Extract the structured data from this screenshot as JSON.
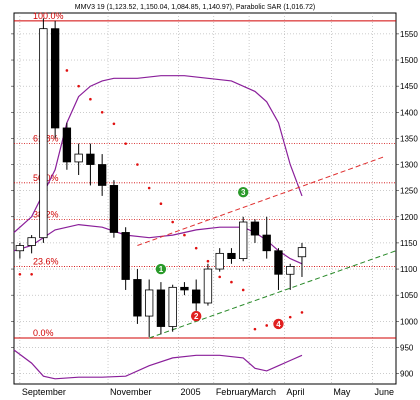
{
  "chart_data": {
    "type": "candlestick",
    "title": "MMV3 19 (1,123.52, 1,150.04, 1,084.85, 1,140.97), Parabolic SAR (1,016.72)",
    "ylim": [
      880,
      1590
    ],
    "y_ticks": [
      900,
      950,
      1000,
      1050,
      1100,
      1150,
      1200,
      1250,
      1300,
      1350,
      1400,
      1450,
      1500,
      1550
    ],
    "x_labels": [
      {
        "label": "September",
        "bar": 0
      },
      {
        "label": "November",
        "bar": 7.5
      },
      {
        "label": "2005",
        "bar": 13.5
      },
      {
        "label": "February",
        "bar": 16.5
      },
      {
        "label": "March",
        "bar": 19.5
      },
      {
        "label": "April",
        "bar": 22.5
      },
      {
        "label": "May",
        "bar": 26.5
      },
      {
        "label": "June",
        "bar": 30
      }
    ],
    "x_range": [
      -0.5,
      32
    ],
    "candles": [
      {
        "o": 1135,
        "h": 1150,
        "l": 1120,
        "c": 1145
      },
      {
        "o": 1145,
        "h": 1165,
        "l": 1130,
        "c": 1160
      },
      {
        "o": 1160,
        "h": 1580,
        "l": 1150,
        "c": 1560
      },
      {
        "o": 1560,
        "h": 1575,
        "l": 1350,
        "c": 1370
      },
      {
        "o": 1370,
        "h": 1380,
        "l": 1290,
        "c": 1305
      },
      {
        "o": 1305,
        "h": 1340,
        "l": 1280,
        "c": 1320
      },
      {
        "o": 1320,
        "h": 1340,
        "l": 1260,
        "c": 1300
      },
      {
        "o": 1300,
        "h": 1320,
        "l": 1240,
        "c": 1260
      },
      {
        "o": 1260,
        "h": 1270,
        "l": 1160,
        "c": 1170
      },
      {
        "o": 1170,
        "h": 1180,
        "l": 1060,
        "c": 1080
      },
      {
        "o": 1080,
        "h": 1100,
        "l": 995,
        "c": 1010
      },
      {
        "o": 1010,
        "h": 1080,
        "l": 970,
        "c": 1060
      },
      {
        "o": 1060,
        "h": 1075,
        "l": 975,
        "c": 990
      },
      {
        "o": 990,
        "h": 1070,
        "l": 980,
        "c": 1065
      },
      {
        "o": 1065,
        "h": 1075,
        "l": 1050,
        "c": 1060
      },
      {
        "o": 1060,
        "h": 1080,
        "l": 1020,
        "c": 1035
      },
      {
        "o": 1035,
        "h": 1110,
        "l": 1030,
        "c": 1100
      },
      {
        "o": 1100,
        "h": 1140,
        "l": 1095,
        "c": 1130
      },
      {
        "o": 1130,
        "h": 1140,
        "l": 1110,
        "c": 1120
      },
      {
        "o": 1120,
        "h": 1200,
        "l": 1115,
        "c": 1190
      },
      {
        "o": 1190,
        "h": 1195,
        "l": 1150,
        "c": 1165
      },
      {
        "o": 1165,
        "h": 1200,
        "l": 1120,
        "c": 1135
      },
      {
        "o": 1135,
        "h": 1140,
        "l": 1060,
        "c": 1090
      },
      {
        "o": 1090,
        "h": 1110,
        "l": 1060,
        "c": 1105
      },
      {
        "o": 1123.52,
        "h": 1150.04,
        "l": 1084.85,
        "c": 1140.97
      }
    ],
    "upper_band": [
      [
        -0.5,
        1170
      ],
      [
        1,
        1200
      ],
      [
        3,
        1290
      ],
      [
        4,
        1380
      ],
      [
        5,
        1430
      ],
      [
        6,
        1450
      ],
      [
        7,
        1460
      ],
      [
        8,
        1465
      ],
      [
        10,
        1465
      ],
      [
        12,
        1470
      ],
      [
        14,
        1470
      ],
      [
        16,
        1465
      ],
      [
        18,
        1460
      ],
      [
        20,
        1440
      ],
      [
        21,
        1420
      ],
      [
        22,
        1380
      ],
      [
        23,
        1300
      ],
      [
        24,
        1240
      ]
    ],
    "middle_line": [
      [
        -0.5,
        1135
      ],
      [
        1,
        1145
      ],
      [
        3,
        1175
      ],
      [
        5,
        1185
      ],
      [
        7,
        1180
      ],
      [
        9,
        1165
      ],
      [
        11,
        1160
      ],
      [
        13,
        1165
      ],
      [
        15,
        1175
      ],
      [
        17,
        1180
      ],
      [
        19,
        1180
      ],
      [
        20,
        1170
      ],
      [
        21,
        1155
      ],
      [
        22,
        1135
      ],
      [
        23,
        1120
      ],
      [
        24,
        1110
      ]
    ],
    "lower_band": [
      [
        -0.5,
        945
      ],
      [
        1,
        920
      ],
      [
        2,
        895
      ],
      [
        3,
        890
      ],
      [
        5,
        893
      ],
      [
        7,
        893
      ],
      [
        9,
        895
      ],
      [
        11,
        915
      ],
      [
        13,
        930
      ],
      [
        15,
        935
      ],
      [
        17,
        935
      ],
      [
        19,
        930
      ],
      [
        20,
        910
      ],
      [
        21,
        905
      ],
      [
        22,
        915
      ],
      [
        23,
        925
      ],
      [
        24,
        935
      ]
    ],
    "sar": [
      [
        0,
        1090
      ],
      [
        1,
        1090
      ],
      [
        3,
        1515
      ],
      [
        4,
        1480
      ],
      [
        5,
        1450
      ],
      [
        6,
        1425
      ],
      [
        7,
        1400
      ],
      [
        8,
        1378
      ],
      [
        9,
        1340
      ],
      [
        10,
        1300
      ],
      [
        11,
        1255
      ],
      [
        12,
        1225
      ],
      [
        13,
        1190
      ],
      [
        14,
        1165
      ],
      [
        15,
        1140
      ],
      [
        16,
        1115
      ],
      [
        17,
        1085
      ],
      [
        18,
        1075
      ],
      [
        19,
        1060
      ],
      [
        20,
        985
      ],
      [
        21,
        992
      ],
      [
        22,
        1000
      ],
      [
        23,
        1008
      ],
      [
        24,
        1017
      ]
    ],
    "fib_levels": [
      {
        "label": "100.0%",
        "value": 1575,
        "solid": true
      },
      {
        "label": "61.8%",
        "value": 1340,
        "solid": false
      },
      {
        "label": "50.0%",
        "value": 1265,
        "solid": false
      },
      {
        "label": "38.2%",
        "value": 1195,
        "solid": false
      },
      {
        "label": "23.6%",
        "value": 1105,
        "solid": false
      },
      {
        "label": "0.0%",
        "value": 968,
        "solid": true
      }
    ],
    "trendlines": [
      {
        "color": "#e03030",
        "from": [
          10,
          1145
        ],
        "to": [
          31,
          1315
        ]
      },
      {
        "color": "#2a8a2a",
        "from": [
          11,
          968
        ],
        "to": [
          32,
          1135
        ]
      }
    ],
    "annotations": [
      {
        "label": "1",
        "color": "#2a9a2a",
        "bar": 12,
        "y": 1100
      },
      {
        "label": "2",
        "color": "#e02020",
        "bar": 15,
        "y": 1010
      },
      {
        "label": "3",
        "color": "#2a9a2a",
        "bar": 19,
        "y": 1247
      },
      {
        "label": "4",
        "color": "#e02020",
        "bar": 22,
        "y": 995
      }
    ],
    "grid": true
  }
}
